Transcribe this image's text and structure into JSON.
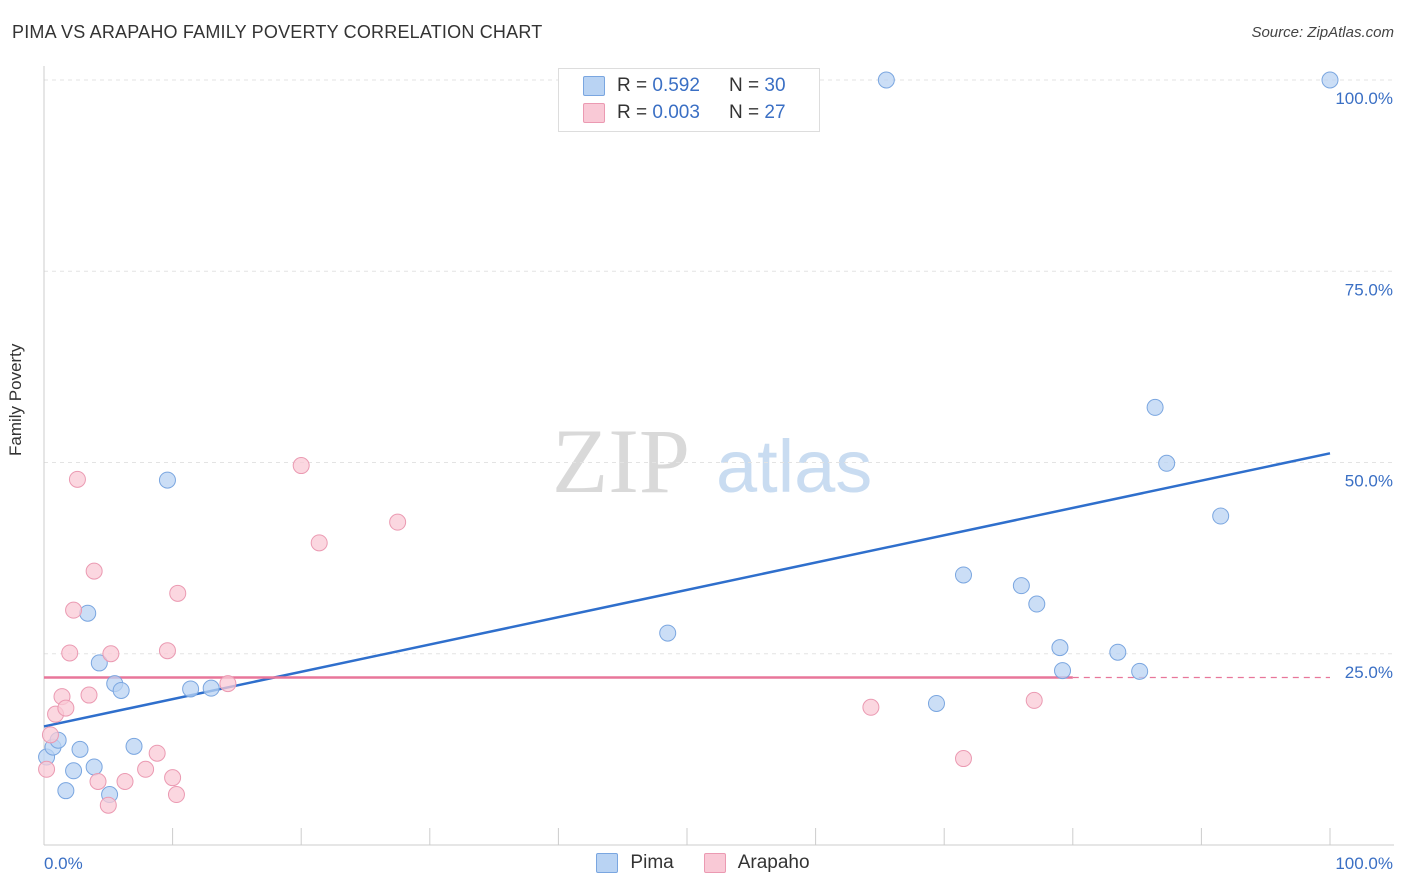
{
  "header": {
    "title": "PIMA VS ARAPAHO FAMILY POVERTY CORRELATION CHART",
    "source": "Source: ZipAtlas.com"
  },
  "watermark": {
    "zip": "ZIP",
    "atlas": "atlas"
  },
  "legend": {
    "pima": {
      "r_label": "R =",
      "r_value": "0.592",
      "n_label": "N =",
      "n_value": "30"
    },
    "arapaho": {
      "r_label": "R =",
      "r_value": "0.003",
      "n_label": "N =",
      "n_value": "27"
    }
  },
  "bottom_legend": {
    "pima": "Pima",
    "arapaho": "Arapaho"
  },
  "colors": {
    "pima_fill": "#b9d3f3",
    "pima_stroke": "#7aa6e0",
    "pima_line": "#2f6fcc",
    "arapaho_fill": "#f9c9d6",
    "arapaho_stroke": "#eb9ab2",
    "arapaho_line": "#e8769a",
    "axis_text": "#3a6fc4"
  },
  "chart_data": {
    "type": "scatter",
    "title": "PIMA VS ARAPAHO FAMILY POVERTY CORRELATION CHART",
    "xlabel": "",
    "ylabel": "Family Poverty",
    "xlim": [
      0,
      100
    ],
    "ylim": [
      0,
      100
    ],
    "x_tick_labels": [
      "0.0%",
      "100.0%"
    ],
    "y_ticks": [
      25,
      50,
      75,
      100
    ],
    "y_tick_labels": [
      "25.0%",
      "50.0%",
      "75.0%",
      "100.0%"
    ],
    "grid": true,
    "legend_position": "top-center",
    "series": [
      {
        "name": "Pima",
        "r": 0.592,
        "n": 30,
        "points": [
          [
            0.2,
            11.5
          ],
          [
            0.7,
            12.8
          ],
          [
            1.1,
            13.7
          ],
          [
            1.7,
            7.1
          ],
          [
            2.3,
            9.7
          ],
          [
            2.8,
            12.5
          ],
          [
            3.4,
            30.3
          ],
          [
            3.9,
            10.2
          ],
          [
            4.3,
            23.8
          ],
          [
            5.1,
            6.6
          ],
          [
            5.5,
            21.1
          ],
          [
            6.0,
            20.2
          ],
          [
            7.0,
            12.9
          ],
          [
            9.6,
            47.7
          ],
          [
            11.4,
            20.4
          ],
          [
            13.0,
            20.5
          ],
          [
            48.5,
            27.7
          ],
          [
            65.5,
            100
          ],
          [
            69.4,
            18.5
          ],
          [
            71.5,
            35.3
          ],
          [
            76.0,
            33.9
          ],
          [
            77.2,
            31.5
          ],
          [
            79.0,
            25.8
          ],
          [
            79.2,
            22.8
          ],
          [
            83.5,
            25.2
          ],
          [
            85.2,
            22.7
          ],
          [
            86.4,
            57.2
          ],
          [
            87.3,
            49.9
          ],
          [
            91.5,
            43.0
          ],
          [
            100,
            100
          ]
        ],
        "trend": {
          "x": [
            0,
            100
          ],
          "y": [
            15.5,
            51.2
          ]
        }
      },
      {
        "name": "Arapaho",
        "r": 0.003,
        "n": 27,
        "points": [
          [
            0.2,
            9.9
          ],
          [
            0.5,
            14.4
          ],
          [
            0.9,
            17.1
          ],
          [
            1.4,
            19.4
          ],
          [
            1.7,
            17.9
          ],
          [
            2.0,
            25.1
          ],
          [
            2.3,
            30.7
          ],
          [
            2.6,
            47.8
          ],
          [
            3.5,
            19.6
          ],
          [
            3.9,
            35.8
          ],
          [
            4.2,
            8.3
          ],
          [
            5.0,
            5.2
          ],
          [
            5.2,
            25.0
          ],
          [
            6.3,
            8.3
          ],
          [
            7.9,
            9.9
          ],
          [
            8.8,
            12.0
          ],
          [
            9.6,
            25.4
          ],
          [
            10.0,
            8.8
          ],
          [
            10.3,
            6.6
          ],
          [
            10.4,
            32.9
          ],
          [
            14.3,
            21.1
          ],
          [
            20.0,
            49.6
          ],
          [
            21.4,
            39.5
          ],
          [
            27.5,
            42.2
          ],
          [
            64.3,
            18.0
          ],
          [
            71.5,
            11.3
          ],
          [
            77.0,
            18.9
          ]
        ],
        "trend": {
          "x": [
            0,
            80
          ],
          "y": [
            21.9,
            21.9
          ]
        },
        "trend_dashed": {
          "x": [
            80,
            100
          ],
          "y": [
            21.9,
            21.9
          ]
        }
      }
    ]
  }
}
